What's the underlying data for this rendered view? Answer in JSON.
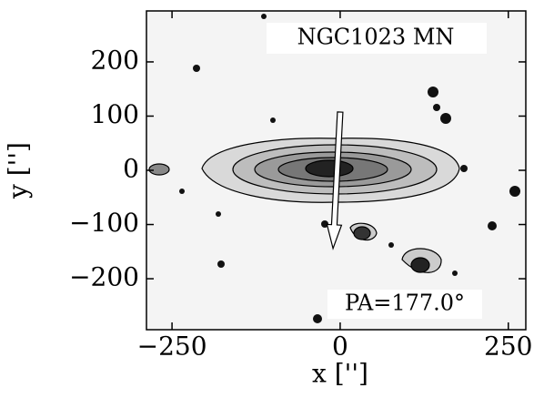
{
  "chart_data": {
    "type": "contour",
    "title": "NGC1023 MN",
    "xlabel": "x ['']",
    "ylabel": "y ['']",
    "xlim": [
      -288,
      276
    ],
    "ylim": [
      -294,
      294
    ],
    "xticks": [
      {
        "value": -250,
        "label": "−250"
      },
      0,
      250
    ],
    "yticks": [
      {
        "value": -200,
        "label": "−200"
      },
      {
        "value": -100,
        "label": "−100"
      },
      0,
      100,
      200
    ],
    "pa": {
      "value": 177.0,
      "label": "PA=177.0°"
    }
  }
}
